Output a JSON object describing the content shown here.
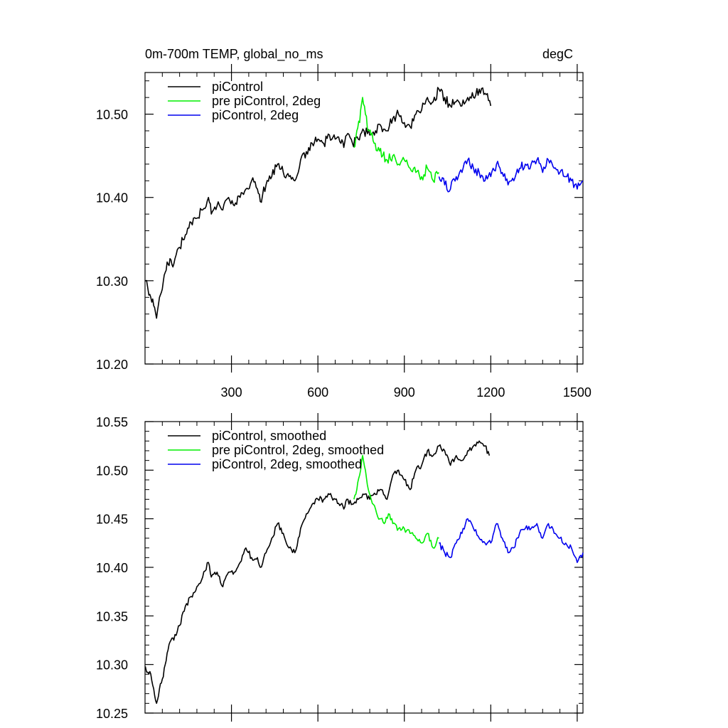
{
  "chart_data": [
    {
      "type": "line",
      "title": "0m-700m TEMP, global_no_ms",
      "units": "degC",
      "xlim": [
        0,
        1520
      ],
      "ylim": [
        10.2,
        10.55
      ],
      "yticks": [
        "10.20",
        "10.30",
        "10.40",
        "10.50"
      ],
      "xticks": [
        "300",
        "600",
        "900",
        "1200",
        "1500"
      ],
      "legend_position": "top-left",
      "series": [
        {
          "name": "piControl",
          "color": "#000000",
          "points": [
            [
              1,
              10.3
            ],
            [
              10,
              10.29
            ],
            [
              20,
              10.28
            ],
            [
              30,
              10.27
            ],
            [
              40,
              10.255
            ],
            [
              50,
              10.28
            ],
            [
              60,
              10.29
            ],
            [
              70,
              10.31
            ],
            [
              80,
              10.32
            ],
            [
              90,
              10.325
            ],
            [
              100,
              10.32
            ],
            [
              120,
              10.34
            ],
            [
              140,
              10.355
            ],
            [
              160,
              10.37
            ],
            [
              180,
              10.375
            ],
            [
              200,
              10.385
            ],
            [
              220,
              10.4
            ],
            [
              230,
              10.38
            ],
            [
              250,
              10.39
            ],
            [
              270,
              10.385
            ],
            [
              290,
              10.4
            ],
            [
              310,
              10.39
            ],
            [
              330,
              10.4
            ],
            [
              350,
              10.41
            ],
            [
              370,
              10.42
            ],
            [
              390,
              10.41
            ],
            [
              400,
              10.395
            ],
            [
              420,
              10.415
            ],
            [
              440,
              10.425
            ],
            [
              460,
              10.44
            ],
            [
              480,
              10.43
            ],
            [
              500,
              10.425
            ],
            [
              520,
              10.42
            ],
            [
              540,
              10.445
            ],
            [
              560,
              10.455
            ],
            [
              580,
              10.465
            ],
            [
              600,
              10.47
            ],
            [
              620,
              10.465
            ],
            [
              640,
              10.475
            ],
            [
              660,
              10.47
            ],
            [
              680,
              10.465
            ],
            [
              690,
              10.46
            ],
            [
              700,
              10.475
            ],
            [
              720,
              10.465
            ],
            [
              740,
              10.47
            ],
            [
              760,
              10.48
            ],
            [
              780,
              10.475
            ],
            [
              800,
              10.48
            ],
            [
              820,
              10.485
            ],
            [
              840,
              10.48
            ],
            [
              860,
              10.495
            ],
            [
              880,
              10.5
            ],
            [
              900,
              10.49
            ],
            [
              920,
              10.485
            ],
            [
              940,
              10.5
            ],
            [
              960,
              10.505
            ],
            [
              980,
              10.52
            ],
            [
              1000,
              10.515
            ],
            [
              1020,
              10.53
            ],
            [
              1040,
              10.52
            ],
            [
              1060,
              10.51
            ],
            [
              1080,
              10.515
            ],
            [
              1100,
              10.51
            ],
            [
              1120,
              10.52
            ],
            [
              1140,
              10.52
            ],
            [
              1160,
              10.53
            ],
            [
              1180,
              10.525
            ],
            [
              1200,
              10.51
            ]
          ]
        },
        {
          "name": "pre piControl, 2deg",
          "color": "#00ee00",
          "points": [
            [
              725,
              10.46
            ],
            [
              735,
              10.48
            ],
            [
              745,
              10.49
            ],
            [
              755,
              10.52
            ],
            [
              765,
              10.5
            ],
            [
              775,
              10.48
            ],
            [
              785,
              10.475
            ],
            [
              795,
              10.465
            ],
            [
              810,
              10.46
            ],
            [
              825,
              10.45
            ],
            [
              840,
              10.445
            ],
            [
              860,
              10.45
            ],
            [
              880,
              10.44
            ],
            [
              900,
              10.445
            ],
            [
              920,
              10.435
            ],
            [
              940,
              10.43
            ],
            [
              960,
              10.425
            ],
            [
              980,
              10.435
            ],
            [
              1000,
              10.42
            ],
            [
              1020,
              10.43
            ]
          ]
        },
        {
          "name": "piControl, 2deg",
          "color": "#0000ee",
          "points": [
            [
              1020,
              10.425
            ],
            [
              1040,
              10.415
            ],
            [
              1060,
              10.41
            ],
            [
              1080,
              10.425
            ],
            [
              1100,
              10.43
            ],
            [
              1120,
              10.445
            ],
            [
              1140,
              10.435
            ],
            [
              1160,
              10.43
            ],
            [
              1180,
              10.42
            ],
            [
              1200,
              10.425
            ],
            [
              1220,
              10.44
            ],
            [
              1240,
              10.43
            ],
            [
              1260,
              10.415
            ],
            [
              1280,
              10.42
            ],
            [
              1300,
              10.435
            ],
            [
              1320,
              10.44
            ],
            [
              1340,
              10.44
            ],
            [
              1360,
              10.445
            ],
            [
              1380,
              10.43
            ],
            [
              1400,
              10.445
            ],
            [
              1420,
              10.435
            ],
            [
              1440,
              10.43
            ],
            [
              1460,
              10.425
            ],
            [
              1480,
              10.42
            ],
            [
              1500,
              10.41
            ],
            [
              1520,
              10.42
            ]
          ]
        }
      ]
    },
    {
      "type": "line",
      "xlim": [
        0,
        1520
      ],
      "ylim": [
        10.25,
        10.55
      ],
      "yticks": [
        "10.25",
        "10.30",
        "10.35",
        "10.40",
        "10.45",
        "10.50",
        "10.55"
      ],
      "xticks": [],
      "legend_position": "top-left",
      "series": [
        {
          "name": "piControl, smoothed",
          "color": "#000000",
          "points": [
            [
              1,
              10.298
            ],
            [
              10,
              10.292
            ],
            [
              20,
              10.29
            ],
            [
              30,
              10.275
            ],
            [
              40,
              10.26
            ],
            [
              50,
              10.275
            ],
            [
              60,
              10.285
            ],
            [
              70,
              10.3
            ],
            [
              80,
              10.315
            ],
            [
              90,
              10.325
            ],
            [
              100,
              10.325
            ],
            [
              120,
              10.34
            ],
            [
              140,
              10.36
            ],
            [
              160,
              10.37
            ],
            [
              180,
              10.38
            ],
            [
              200,
              10.39
            ],
            [
              220,
              10.405
            ],
            [
              230,
              10.39
            ],
            [
              250,
              10.395
            ],
            [
              270,
              10.38
            ],
            [
              290,
              10.395
            ],
            [
              310,
              10.395
            ],
            [
              330,
              10.405
            ],
            [
              350,
              10.42
            ],
            [
              370,
              10.41
            ],
            [
              390,
              10.41
            ],
            [
              400,
              10.4
            ],
            [
              420,
              10.415
            ],
            [
              440,
              10.43
            ],
            [
              460,
              10.445
            ],
            [
              480,
              10.435
            ],
            [
              500,
              10.42
            ],
            [
              520,
              10.415
            ],
            [
              540,
              10.44
            ],
            [
              560,
              10.455
            ],
            [
              580,
              10.465
            ],
            [
              600,
              10.47
            ],
            [
              620,
              10.47
            ],
            [
              640,
              10.475
            ],
            [
              660,
              10.47
            ],
            [
              680,
              10.465
            ],
            [
              690,
              10.46
            ],
            [
              700,
              10.47
            ],
            [
              720,
              10.465
            ],
            [
              740,
              10.47
            ],
            [
              760,
              10.475
            ],
            [
              780,
              10.47
            ],
            [
              800,
              10.475
            ],
            [
              820,
              10.48
            ],
            [
              840,
              10.47
            ],
            [
              860,
              10.495
            ],
            [
              880,
              10.5
            ],
            [
              900,
              10.49
            ],
            [
              920,
              10.48
            ],
            [
              940,
              10.5
            ],
            [
              960,
              10.505
            ],
            [
              980,
              10.52
            ],
            [
              1000,
              10.515
            ],
            [
              1020,
              10.525
            ],
            [
              1040,
              10.52
            ],
            [
              1060,
              10.505
            ],
            [
              1080,
              10.515
            ],
            [
              1100,
              10.51
            ],
            [
              1120,
              10.52
            ],
            [
              1140,
              10.525
            ],
            [
              1160,
              10.53
            ],
            [
              1180,
              10.525
            ],
            [
              1195,
              10.515
            ]
          ]
        },
        {
          "name": "pre piControl, 2deg, smoothed",
          "color": "#00ee00",
          "points": [
            [
              725,
              10.47
            ],
            [
              735,
              10.48
            ],
            [
              745,
              10.495
            ],
            [
              755,
              10.515
            ],
            [
              765,
              10.5
            ],
            [
              775,
              10.48
            ],
            [
              785,
              10.47
            ],
            [
              800,
              10.46
            ],
            [
              815,
              10.45
            ],
            [
              830,
              10.445
            ],
            [
              845,
              10.455
            ],
            [
              860,
              10.445
            ],
            [
              880,
              10.44
            ],
            [
              900,
              10.44
            ],
            [
              920,
              10.435
            ],
            [
              940,
              10.43
            ],
            [
              960,
              10.425
            ],
            [
              980,
              10.435
            ],
            [
              1000,
              10.42
            ],
            [
              1020,
              10.43
            ]
          ]
        },
        {
          "name": "piControl, 2deg, smoothed",
          "color": "#0000ee",
          "points": [
            [
              1020,
              10.425
            ],
            [
              1040,
              10.415
            ],
            [
              1060,
              10.41
            ],
            [
              1080,
              10.425
            ],
            [
              1100,
              10.435
            ],
            [
              1120,
              10.45
            ],
            [
              1140,
              10.44
            ],
            [
              1160,
              10.43
            ],
            [
              1180,
              10.425
            ],
            [
              1200,
              10.425
            ],
            [
              1220,
              10.445
            ],
            [
              1240,
              10.43
            ],
            [
              1260,
              10.415
            ],
            [
              1280,
              10.42
            ],
            [
              1300,
              10.435
            ],
            [
              1320,
              10.44
            ],
            [
              1340,
              10.44
            ],
            [
              1360,
              10.445
            ],
            [
              1380,
              10.43
            ],
            [
              1400,
              10.445
            ],
            [
              1420,
              10.435
            ],
            [
              1440,
              10.43
            ],
            [
              1460,
              10.425
            ],
            [
              1480,
              10.42
            ],
            [
              1500,
              10.405
            ],
            [
              1520,
              10.415
            ]
          ]
        }
      ]
    }
  ]
}
